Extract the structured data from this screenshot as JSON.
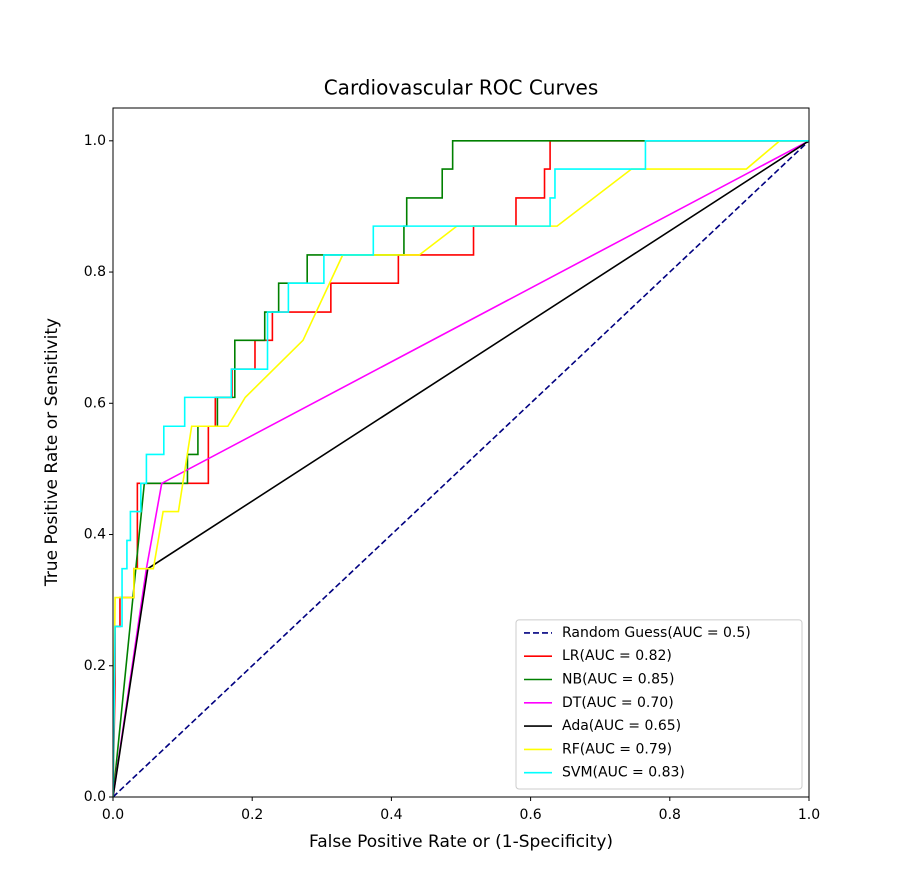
{
  "chart_data": {
    "type": "line",
    "title": "Cardiovascular ROC Curves",
    "xlabel": "False Positive Rate or (1-Specificity)",
    "ylabel": "True Positive Rate or Sensitivity",
    "xlim": [
      0,
      1
    ],
    "ylim": [
      0,
      1.05
    ],
    "xticks": [
      {
        "value": 0,
        "label": "0.0"
      },
      0.2,
      0.4,
      0.6,
      0.8,
      {
        "value": 1,
        "label": "1.0"
      }
    ],
    "yticks": [
      {
        "value": 0,
        "label": "0.0"
      },
      0.2,
      0.4,
      0.6,
      0.8,
      {
        "value": 1,
        "label": "1.0"
      }
    ],
    "legend": "lower right",
    "series": [
      {
        "name": "Random Guess(AUC = 0.5)",
        "color": "#000080",
        "linestyle": "dashed",
        "x": [
          0,
          1
        ],
        "values": [
          0,
          1
        ]
      },
      {
        "name": "LR(AUC = 0.82)",
        "color": "#ff0000",
        "linestyle": "solid",
        "x": [
          0,
          0.003,
          0.003,
          0.01,
          0.01,
          0.03,
          0.03,
          0.035,
          0.035,
          0.137,
          0.137,
          0.147,
          0.147,
          0.171,
          0.171,
          0.204,
          0.204,
          0.229,
          0.229,
          0.313,
          0.313,
          0.41,
          0.41,
          0.518,
          0.518,
          0.579,
          0.579,
          0.62,
          0.62,
          0.628,
          0.628,
          1
        ],
        "values": [
          0,
          0.174,
          0.26,
          0.26,
          0.304,
          0.304,
          0.348,
          0.348,
          0.478,
          0.478,
          0.565,
          0.565,
          0.609,
          0.609,
          0.652,
          0.652,
          0.696,
          0.696,
          0.739,
          0.739,
          0.783,
          0.783,
          0.826,
          0.826,
          0.87,
          0.87,
          0.913,
          0.913,
          0.957,
          0.957,
          1,
          1
        ]
      },
      {
        "name": "NB(AUC = 0.85)",
        "color": "#008000",
        "linestyle": "solid",
        "x": [
          0,
          0.045,
          0.107,
          0.107,
          0.122,
          0.122,
          0.15,
          0.15,
          0.175,
          0.175,
          0.218,
          0.218,
          0.238,
          0.238,
          0.279,
          0.279,
          0.418,
          0.418,
          0.422,
          0.422,
          0.473,
          0.473,
          0.488,
          0.488,
          1
        ],
        "values": [
          0,
          0.478,
          0.478,
          0.522,
          0.522,
          0.565,
          0.565,
          0.609,
          0.609,
          0.696,
          0.696,
          0.739,
          0.739,
          0.783,
          0.783,
          0.826,
          0.826,
          0.87,
          0.87,
          0.913,
          0.913,
          0.957,
          0.957,
          1,
          1
        ]
      },
      {
        "name": "DT(AUC = 0.70)",
        "color": "#ff00ff",
        "linestyle": "solid",
        "x": [
          0,
          0.048,
          0.07,
          1
        ],
        "values": [
          0,
          0.348,
          0.478,
          1
        ]
      },
      {
        "name": "Ada(AUC = 0.65)",
        "color": "#000000",
        "linestyle": "solid",
        "x": [
          0,
          0.05,
          1
        ],
        "values": [
          0,
          0.348,
          1
        ]
      },
      {
        "name": "RF(AUC = 0.79)",
        "color": "#ffff00",
        "linestyle": "solid",
        "x": [
          0,
          0.003,
          0.03,
          0.03,
          0.058,
          0.072,
          0.094,
          0.113,
          0.165,
          0.19,
          0.273,
          0.33,
          0.44,
          0.494,
          0.638,
          0.745,
          0.91,
          0.958,
          1
        ],
        "values": [
          0,
          0.304,
          0.304,
          0.348,
          0.348,
          0.435,
          0.435,
          0.565,
          0.565,
          0.609,
          0.696,
          0.826,
          0.826,
          0.87,
          0.87,
          0.957,
          0.957,
          1,
          1
        ]
      },
      {
        "name": "SVM(AUC = 0.83)",
        "color": "#00ffff",
        "linestyle": "solid",
        "x": [
          0,
          0.003,
          0.013,
          0.013,
          0.02,
          0.02,
          0.025,
          0.025,
          0.04,
          0.04,
          0.048,
          0.048,
          0.073,
          0.073,
          0.103,
          0.103,
          0.17,
          0.17,
          0.222,
          0.222,
          0.252,
          0.252,
          0.303,
          0.303,
          0.374,
          0.374,
          0.628,
          0.628,
          0.635,
          0.635,
          0.765,
          0.765,
          1
        ],
        "values": [
          0,
          0.26,
          0.26,
          0.348,
          0.348,
          0.391,
          0.391,
          0.435,
          0.435,
          0.478,
          0.478,
          0.522,
          0.522,
          0.565,
          0.565,
          0.609,
          0.609,
          0.652,
          0.652,
          0.739,
          0.739,
          0.783,
          0.783,
          0.826,
          0.826,
          0.87,
          0.87,
          0.913,
          0.913,
          0.957,
          0.957,
          1,
          1
        ]
      }
    ]
  }
}
